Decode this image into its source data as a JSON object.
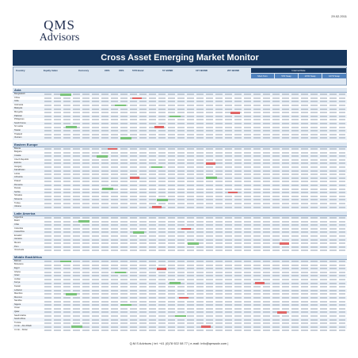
{
  "date": "29.02.2011",
  "logo": {
    "line1": "QMS",
    "line2": "Advisors"
  },
  "title": "Cross Asset Emerging Market Monitor",
  "header_groups": [
    "Country",
    "Equity Index",
    "Currency",
    "CDS",
    "CDS",
    "5YR Bond",
    "5Y BOND",
    "10Y BOND",
    "20Y BOND"
  ],
  "rating": {
    "label": "Internal Rate",
    "sub": [
      "Short Term",
      "5YR Swap",
      "10YR Swap",
      "10YR Swap"
    ]
  },
  "sections": [
    {
      "title": "Asia",
      "rows": [
        "Bangladesh",
        "China",
        "India",
        "Indonesia",
        "Malaysia",
        "Mongolia",
        "Pakistan",
        "Philippines",
        "South Korea",
        "Sri Lanka",
        "Taiwan",
        "Thailand",
        "Vietnam"
      ]
    },
    {
      "title": "Eastern Europe",
      "rows": [
        "Bosnia",
        "Bulgaria",
        "Croatia",
        "Czech Republic",
        "Estonia",
        "Hungary",
        "Kazakhstan",
        "Latvia",
        "Lithuania",
        "Poland",
        "Romania",
        "Russia",
        "Serbia",
        "Slovakia",
        "Slovenia",
        "Turkey",
        "Ukraine"
      ]
    },
    {
      "title": "Latin America",
      "rows": [
        "Argentina",
        "Brazil",
        "Chile",
        "Colombia",
        "Costa Rica",
        "Ecuador",
        "Jamaica",
        "Mexico",
        "Peru",
        "Venezuela"
      ]
    },
    {
      "title": "Middle East/Africa",
      "rows": [
        "Bahrain",
        "Botswana",
        "Egypt",
        "Ghana",
        "Israel",
        "Jordan",
        "Kenya",
        "Kuwait",
        "Lebanon",
        "Mauritius",
        "Morocco",
        "Namibia",
        "Nigeria",
        "Oman",
        "Qatar",
        "Saudi Arabia",
        "South Africa",
        "Tunisia",
        "U.A.E. - Abu Dhabi",
        "U.A.E. - Dubai"
      ]
    }
  ],
  "footer": "Q.M.S Advisors | tel: +41 (0)78 922 08 77 | e-mail: info@qmsadv.com |"
}
